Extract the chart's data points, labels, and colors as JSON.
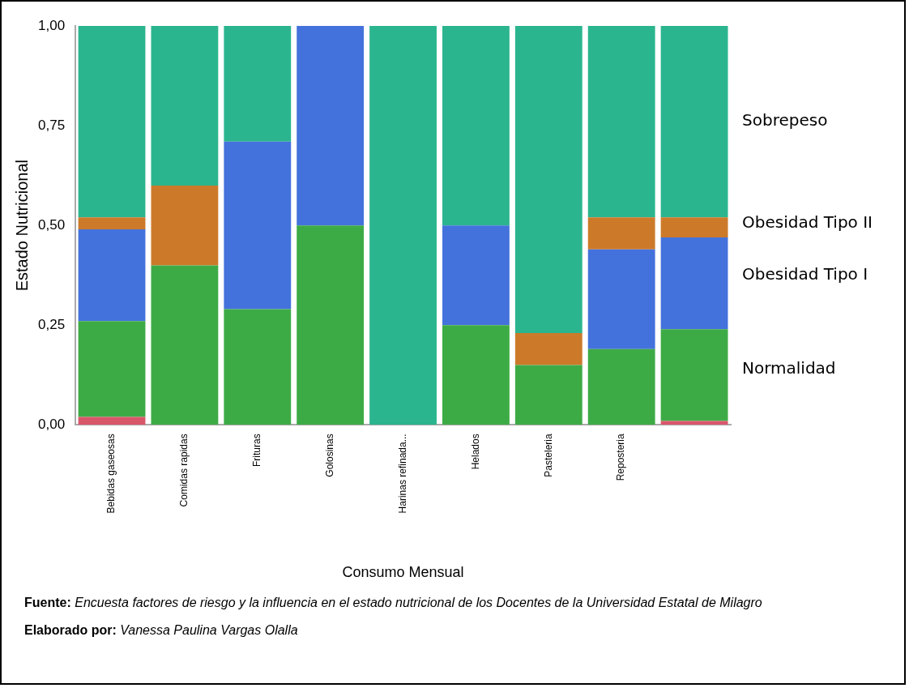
{
  "chart_data": {
    "type": "bar",
    "stacked": true,
    "xlabel": "Consumo Mensual",
    "ylabel": "Estado Nutricional",
    "categories": [
      "Bebidas gaseosas",
      "Comidas rapidas",
      "Frituras",
      "Golosinas",
      "Harinas refinada...",
      "Helados",
      "Pasteleria",
      "Reposteria",
      null
    ],
    "series": [
      {
        "color": "#d9576b",
        "values": [
          0.02,
          0,
          0,
          0,
          0,
          0,
          0,
          0,
          0.01
        ]
      },
      {
        "name": "Normalidad",
        "color": "#3dab45",
        "values": [
          0.24,
          0.4,
          0.29,
          0.5,
          0,
          0.25,
          0.15,
          0.19,
          0.23
        ]
      },
      {
        "name": "Obesidad Tipo I",
        "color": "#4472dc",
        "values": [
          0.23,
          0,
          0.42,
          0.5,
          0,
          0.25,
          0,
          0.25,
          0.23
        ]
      },
      {
        "name": "Obesidad Tipo II",
        "color": "#cc7a2a",
        "values": [
          0.03,
          0.2,
          0,
          0,
          0,
          0,
          0.08,
          0.08,
          0.05
        ]
      },
      {
        "name": "Sobrepeso",
        "color": "#2bb58e",
        "values": [
          0.48,
          0.4,
          0.29,
          0,
          1,
          0.5,
          0.77,
          0.48,
          0.48
        ]
      }
    ],
    "ylim": [
      0,
      1
    ],
    "yticks": [
      {
        "value": 0,
        "label": "0,00"
      },
      {
        "value": 0.25,
        "label": "0,25"
      },
      {
        "value": 0.5,
        "label": "0,50"
      },
      {
        "value": 0.75,
        "label": "0,75"
      },
      {
        "value": 1,
        "label": "1,00"
      }
    ],
    "grid": false,
    "legend": "right",
    "annotations": [
      "Fuente: Encuesta factores de riesgo y la influencia en el estado nutricional de los Docentes de la Universidad Estatal de Milagro",
      "Elaborado por: Vanessa Paulina Vargas Olalla"
    ]
  }
}
